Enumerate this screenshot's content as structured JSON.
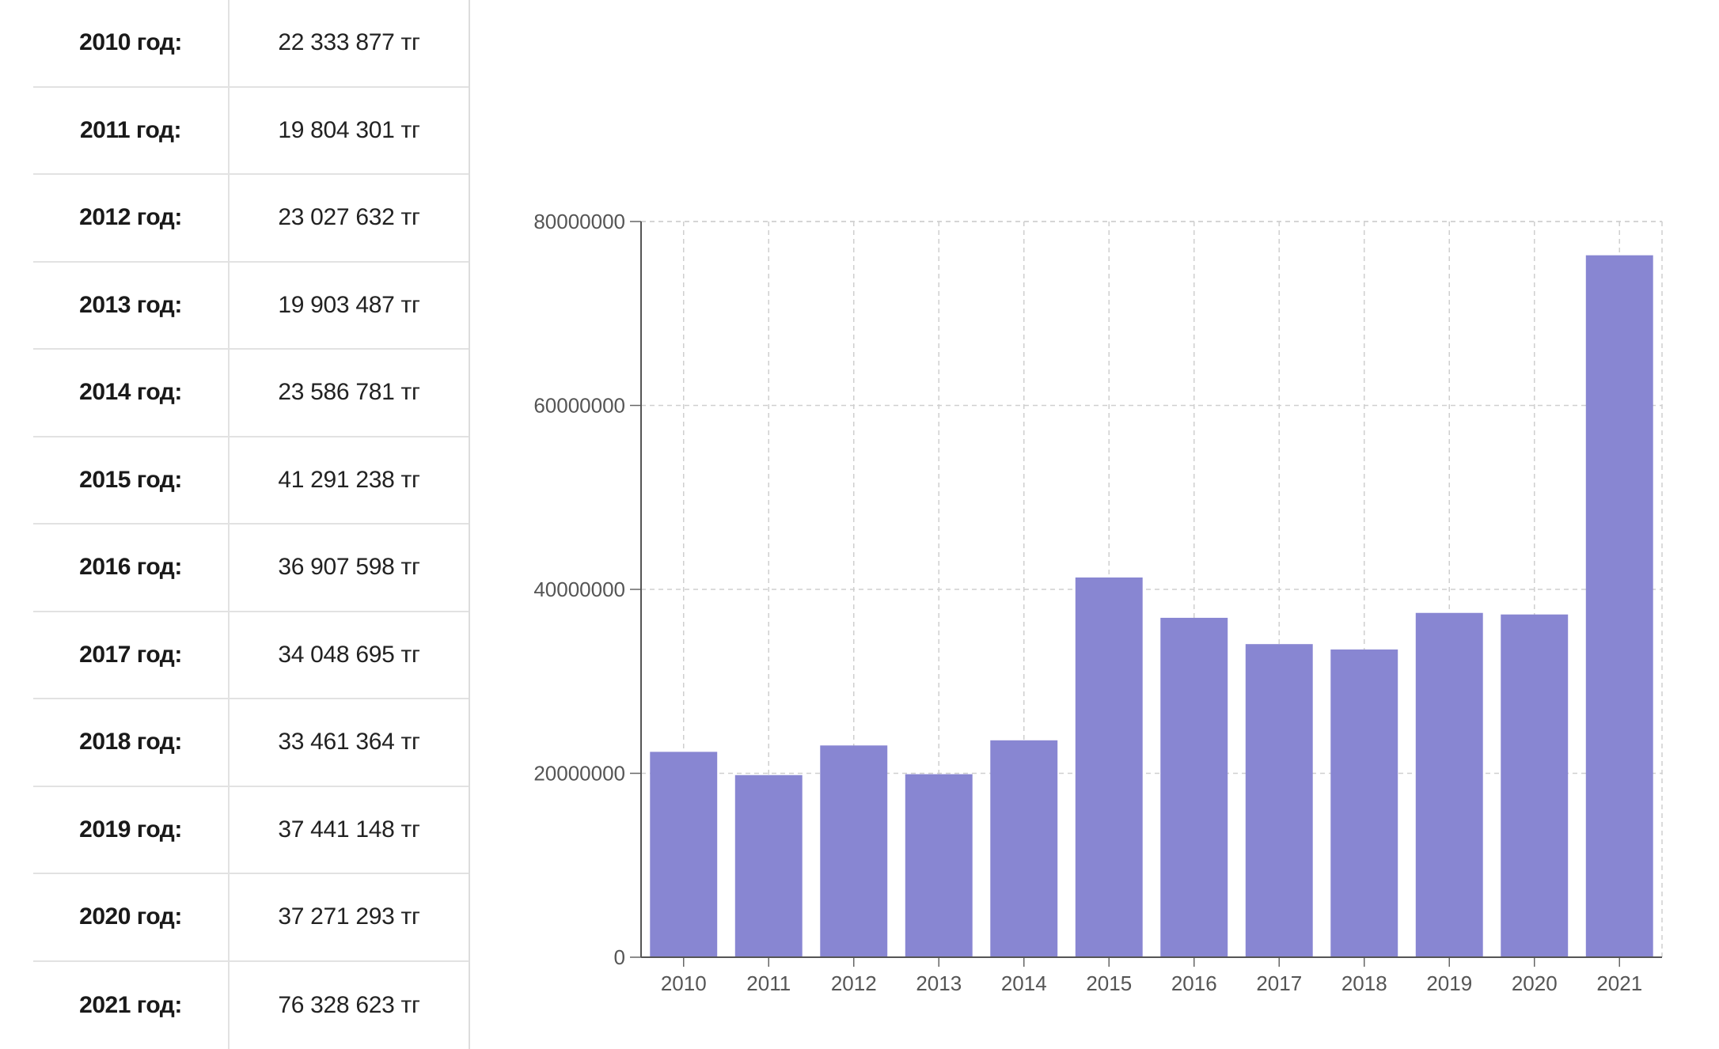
{
  "table": {
    "rows": [
      {
        "year": "2010 год:",
        "value": "22 333 877 тг"
      },
      {
        "year": "2011 год:",
        "value": "19 804 301 тг"
      },
      {
        "year": "2012 год:",
        "value": "23 027 632 тг"
      },
      {
        "year": "2013 год:",
        "value": "19 903 487 тг"
      },
      {
        "year": "2014 год:",
        "value": "23 586 781 тг"
      },
      {
        "year": "2015 год:",
        "value": "41 291 238 тг"
      },
      {
        "year": "2016 год:",
        "value": "36 907 598 тг"
      },
      {
        "year": "2017 год:",
        "value": "34 048 695 тг"
      },
      {
        "year": "2018 год:",
        "value": "33 461 364 тг"
      },
      {
        "year": "2019 год:",
        "value": "37 441 148 тг"
      },
      {
        "year": "2020 год:",
        "value": "37 271 293 тг"
      },
      {
        "year": "2021 год:",
        "value": "76 328 623 тг"
      }
    ]
  },
  "chart_data": {
    "type": "bar",
    "categories": [
      "2010",
      "2011",
      "2012",
      "2013",
      "2014",
      "2015",
      "2016",
      "2017",
      "2018",
      "2019",
      "2020",
      "2021"
    ],
    "values": [
      22333877,
      19804301,
      23027632,
      19903487,
      23586781,
      41291238,
      36907598,
      34048695,
      33461364,
      37441148,
      37271293,
      76328623
    ],
    "yticks": [
      "0",
      "20000000",
      "40000000",
      "60000000",
      "80000000"
    ],
    "ylim": [
      0,
      80000000
    ],
    "grid": true,
    "bar_color": "#8886d2",
    "title": "",
    "xlabel": "",
    "ylabel": ""
  }
}
